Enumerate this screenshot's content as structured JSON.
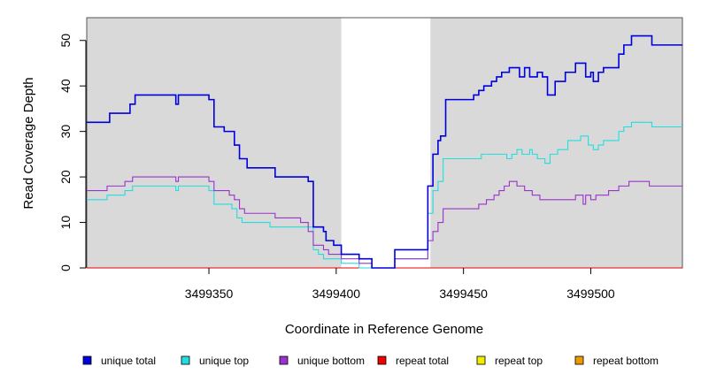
{
  "chart_data": {
    "type": "line",
    "xlabel": "Coordinate in Reference Genome",
    "ylabel": "Read Coverage Depth",
    "xlim": [
      3499302,
      3499536
    ],
    "ylim": [
      0,
      55
    ],
    "x_ticks": [
      3499350,
      3499400,
      3499450,
      3499500
    ],
    "x_tick_labels": [
      "3499350",
      "3499400",
      "3499450",
      "3499500"
    ],
    "y_ticks": [
      0,
      10,
      20,
      30,
      40,
      50
    ],
    "y_tick_labels": [
      "0",
      "10",
      "20",
      "30",
      "40",
      "50"
    ],
    "shaded_regions": [
      {
        "x0": 3499302,
        "x1": 3499402
      },
      {
        "x0": 3499437,
        "x1": 3499536
      }
    ],
    "shade_color": "#d9d9d9",
    "grid": false,
    "legend_position": "bottom",
    "series": [
      {
        "name": "unique total",
        "color": "#0000dd",
        "points": [
          [
            3499302,
            32
          ],
          [
            3499311,
            34
          ],
          [
            3499319,
            36
          ],
          [
            3499321,
            38
          ],
          [
            3499337,
            36
          ],
          [
            3499338,
            38
          ],
          [
            3499350,
            37
          ],
          [
            3499352,
            31
          ],
          [
            3499356,
            30
          ],
          [
            3499360,
            27
          ],
          [
            3499362,
            24
          ],
          [
            3499365,
            22
          ],
          [
            3499376,
            20
          ],
          [
            3499389,
            19
          ],
          [
            3499391,
            9
          ],
          [
            3499395,
            8
          ],
          [
            3499396,
            6
          ],
          [
            3499399,
            5
          ],
          [
            3499402,
            3
          ],
          [
            3499409,
            2
          ],
          [
            3499414,
            0
          ],
          [
            3499423,
            4
          ],
          [
            3499436,
            18
          ],
          [
            3499438,
            25
          ],
          [
            3499440,
            28
          ],
          [
            3499441,
            29
          ],
          [
            3499443,
            37
          ],
          [
            3499454,
            38
          ],
          [
            3499456,
            39
          ],
          [
            3499458,
            40
          ],
          [
            3499461,
            41
          ],
          [
            3499463,
            42
          ],
          [
            3499465,
            43
          ],
          [
            3499468,
            44
          ],
          [
            3499472,
            42
          ],
          [
            3499474,
            44
          ],
          [
            3499476,
            42
          ],
          [
            3499479,
            43
          ],
          [
            3499481,
            42
          ],
          [
            3499483,
            38
          ],
          [
            3499486,
            41
          ],
          [
            3499490,
            43
          ],
          [
            3499494,
            45
          ],
          [
            3499498,
            42
          ],
          [
            3499500,
            43
          ],
          [
            3499501,
            41
          ],
          [
            3499503,
            43
          ],
          [
            3499505,
            44
          ],
          [
            3499511,
            47
          ],
          [
            3499513,
            49
          ],
          [
            3499516,
            51
          ],
          [
            3499524,
            49
          ],
          [
            3499536,
            49
          ]
        ]
      },
      {
        "name": "unique top",
        "color": "#22dddd",
        "points": [
          [
            3499302,
            15
          ],
          [
            3499310,
            16
          ],
          [
            3499317,
            17
          ],
          [
            3499320,
            18
          ],
          [
            3499337,
            17
          ],
          [
            3499338,
            18
          ],
          [
            3499350,
            17
          ],
          [
            3499352,
            14
          ],
          [
            3499359,
            13
          ],
          [
            3499361,
            11
          ],
          [
            3499363,
            10
          ],
          [
            3499374,
            9
          ],
          [
            3499387,
            9
          ],
          [
            3499391,
            4
          ],
          [
            3499393,
            3
          ],
          [
            3499395,
            2
          ],
          [
            3499402,
            1
          ],
          [
            3499409,
            0
          ],
          [
            3499423,
            2
          ],
          [
            3499436,
            12
          ],
          [
            3499438,
            17
          ],
          [
            3499440,
            19
          ],
          [
            3499442,
            24
          ],
          [
            3499457,
            25
          ],
          [
            3499467,
            24
          ],
          [
            3499469,
            25
          ],
          [
            3499471,
            26
          ],
          [
            3499473,
            25
          ],
          [
            3499476,
            26
          ],
          [
            3499477,
            25
          ],
          [
            3499479,
            24
          ],
          [
            3499482,
            23
          ],
          [
            3499484,
            25
          ],
          [
            3499487,
            26
          ],
          [
            3499491,
            28
          ],
          [
            3499496,
            29
          ],
          [
            3499499,
            27
          ],
          [
            3499501,
            26
          ],
          [
            3499503,
            27
          ],
          [
            3499505,
            28
          ],
          [
            3499511,
            30
          ],
          [
            3499513,
            31
          ],
          [
            3499516,
            32
          ],
          [
            3499524,
            31
          ],
          [
            3499536,
            31
          ]
        ]
      },
      {
        "name": "unique bottom",
        "color": "#9933cc",
        "points": [
          [
            3499302,
            17
          ],
          [
            3499310,
            18
          ],
          [
            3499317,
            19
          ],
          [
            3499320,
            20
          ],
          [
            3499337,
            19
          ],
          [
            3499338,
            20
          ],
          [
            3499350,
            19
          ],
          [
            3499352,
            17
          ],
          [
            3499358,
            16
          ],
          [
            3499360,
            15
          ],
          [
            3499362,
            13
          ],
          [
            3499364,
            12
          ],
          [
            3499376,
            11
          ],
          [
            3499386,
            10
          ],
          [
            3499389,
            8
          ],
          [
            3499391,
            5
          ],
          [
            3499395,
            4
          ],
          [
            3499397,
            3
          ],
          [
            3499402,
            2
          ],
          [
            3499409,
            1
          ],
          [
            3499414,
            0
          ],
          [
            3499423,
            2
          ],
          [
            3499436,
            6
          ],
          [
            3499438,
            8
          ],
          [
            3499440,
            10
          ],
          [
            3499442,
            13
          ],
          [
            3499456,
            14
          ],
          [
            3499459,
            15
          ],
          [
            3499462,
            16
          ],
          [
            3499464,
            17
          ],
          [
            3499466,
            18
          ],
          [
            3499468,
            19
          ],
          [
            3499471,
            18
          ],
          [
            3499474,
            17
          ],
          [
            3499477,
            16
          ],
          [
            3499480,
            15
          ],
          [
            3499494,
            16
          ],
          [
            3499497,
            14
          ],
          [
            3499498,
            16
          ],
          [
            3499500,
            15
          ],
          [
            3499502,
            16
          ],
          [
            3499507,
            17
          ],
          [
            3499511,
            18
          ],
          [
            3499515,
            19
          ],
          [
            3499523,
            18
          ],
          [
            3499536,
            18
          ]
        ]
      },
      {
        "name": "repeat total",
        "color": "#ee0000",
        "points": [
          [
            3499302,
            0
          ],
          [
            3499536,
            0
          ]
        ]
      },
      {
        "name": "repeat top",
        "color": "#eeee00",
        "points": [
          [
            3499302,
            0
          ],
          [
            3499536,
            0
          ]
        ]
      },
      {
        "name": "repeat bottom",
        "color": "#ee9900",
        "points": [
          [
            3499302,
            0
          ],
          [
            3499536,
            0
          ]
        ]
      }
    ]
  }
}
